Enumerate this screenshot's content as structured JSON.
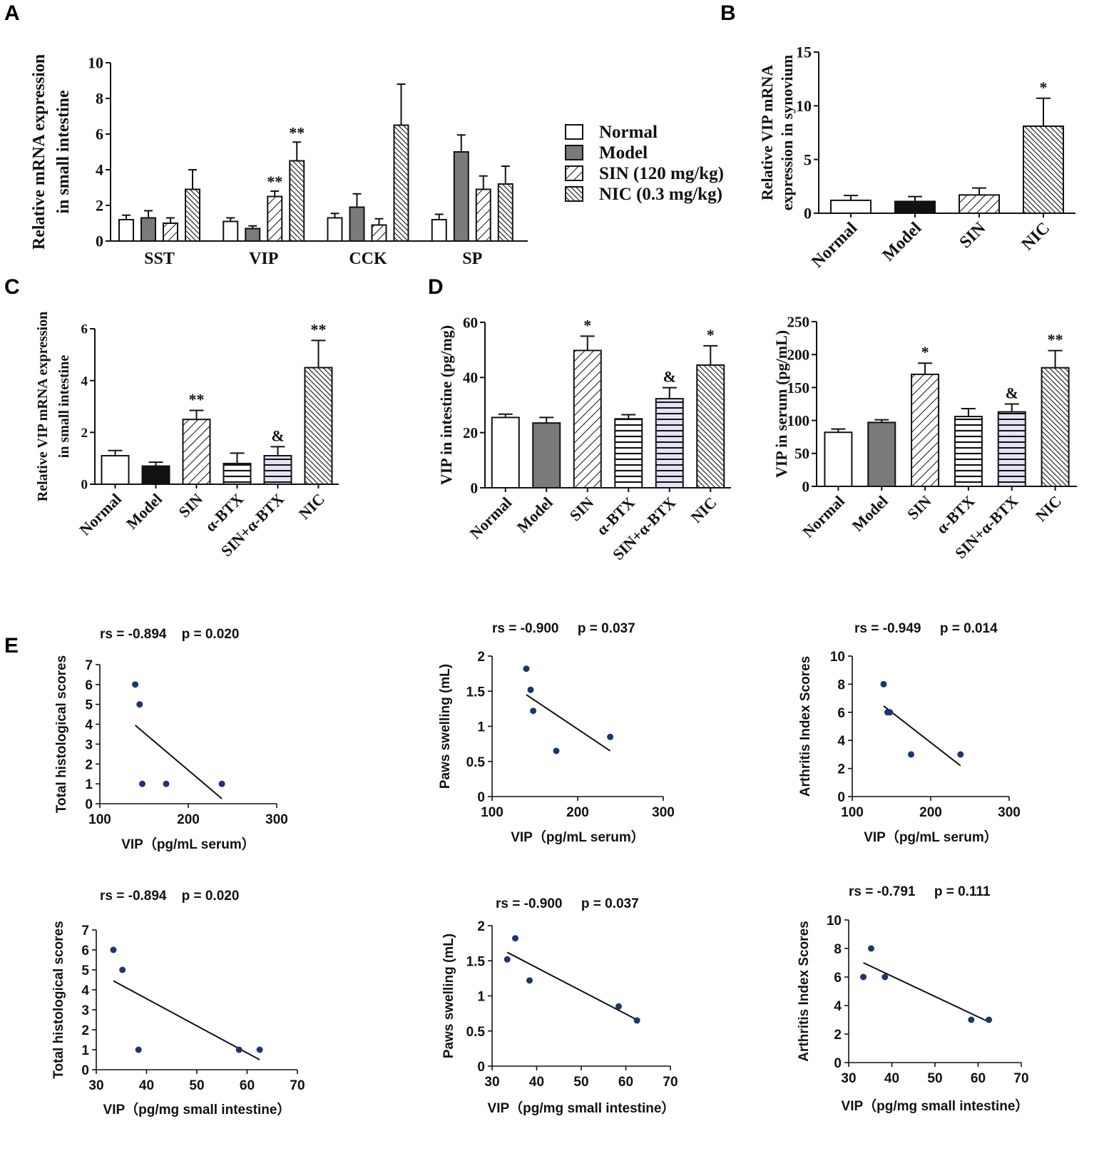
{
  "panel_labels": [
    "A",
    "B",
    "C",
    "D",
    "E"
  ],
  "colors": {
    "ink": "#111111",
    "model_gray": "#7a7a7a",
    "model_black": "#111111",
    "lavender": "#e3e3f5",
    "dot": "#1f3470"
  },
  "chart_data": [
    {
      "id": "A",
      "type": "bar",
      "style": "serif",
      "categories": [
        "SST",
        "VIP",
        "CCK",
        "SP"
      ],
      "series": [
        {
          "name": "Normal",
          "fill": "open",
          "values": [
            1.2,
            1.1,
            1.3,
            1.2
          ],
          "errors": [
            0.25,
            0.2,
            0.25,
            0.3
          ],
          "annotations": [
            "",
            "",
            "",
            ""
          ]
        },
        {
          "name": "Model",
          "fill": "gray",
          "values": [
            1.3,
            0.7,
            1.9,
            5.0
          ],
          "errors": [
            0.4,
            0.15,
            0.75,
            0.95
          ],
          "annotations": [
            "",
            "",
            "",
            ""
          ]
        },
        {
          "name": "SIN (120 mg/kg)",
          "fill": "hatch",
          "values": [
            1.0,
            2.5,
            0.9,
            2.9
          ],
          "errors": [
            0.3,
            0.3,
            0.35,
            0.75
          ],
          "annotations": [
            "",
            "**",
            "",
            ""
          ]
        },
        {
          "name": "NIC (0.3 mg/kg)",
          "fill": "hatch-dense",
          "values": [
            2.9,
            4.5,
            6.5,
            3.2
          ],
          "errors": [
            1.1,
            1.05,
            2.3,
            1.0
          ],
          "annotations": [
            "",
            "**",
            "",
            ""
          ]
        }
      ],
      "ylabel": [
        "Relative  mRNA expression",
        "in small intestine"
      ],
      "ylim": [
        0,
        10
      ],
      "yticks": [
        0,
        2,
        4,
        6,
        8,
        10
      ],
      "legend": [
        "Normal",
        "Model",
        "SIN (120 mg/kg)",
        "NIC (0.3 mg/kg)"
      ]
    },
    {
      "id": "B",
      "type": "bar",
      "style": "serif",
      "categories": [
        "Normal",
        "Model",
        "SIN",
        "NIC"
      ],
      "fills": [
        "open",
        "black",
        "hatch",
        "hatch-dense"
      ],
      "values": [
        1.2,
        1.1,
        1.7,
        8.1
      ],
      "errors": [
        0.45,
        0.45,
        0.65,
        2.6
      ],
      "annotations": [
        "",
        "",
        "",
        "*"
      ],
      "ylabel": [
        "Relative VIP mRNA",
        "expression in synovium"
      ],
      "ylim": [
        0,
        15
      ],
      "yticks": [
        0,
        5,
        10,
        15
      ]
    },
    {
      "id": "C",
      "type": "bar",
      "style": "serif",
      "categories": [
        "Normal",
        "Model",
        "SIN",
        "α-BTX",
        "SIN+α-BTX",
        "NIC"
      ],
      "fills": [
        "open",
        "black",
        "hatch",
        "hlines",
        "hlines-lav",
        "hatch-dense"
      ],
      "values": [
        1.1,
        0.7,
        2.5,
        0.8,
        1.1,
        4.5
      ],
      "errors": [
        0.2,
        0.15,
        0.35,
        0.4,
        0.35,
        1.05
      ],
      "annotations": [
        "",
        "",
        "**",
        "",
        "&",
        "**"
      ],
      "ylabel": [
        "Relative VIP mRNA expression",
        "in small intestine"
      ],
      "ylim": [
        0,
        6
      ],
      "yticks": [
        0,
        2,
        4,
        6
      ]
    },
    {
      "id": "D1",
      "type": "bar",
      "style": "serif",
      "categories": [
        "Normal",
        "Model",
        "SIN",
        "α-BTX",
        "SIN+α-BTX",
        "NIC"
      ],
      "fills": [
        "open",
        "gray",
        "hatch",
        "hlines",
        "hlines-lav",
        "hatch-dense"
      ],
      "values": [
        25.5,
        23.5,
        49.8,
        25,
        32.3,
        44.5
      ],
      "errors": [
        1.2,
        2,
        5.2,
        1.5,
        4,
        7
      ],
      "annotations": [
        "",
        "",
        "*",
        "",
        "&",
        "*"
      ],
      "ylabel": [
        "VIP in intestine (pg/mg)"
      ],
      "ylim": [
        0,
        60
      ],
      "yticks": [
        0,
        20,
        40,
        60
      ]
    },
    {
      "id": "D2",
      "type": "bar",
      "style": "serif",
      "categories": [
        "Normal",
        "Model",
        "SIN",
        "α-BTX",
        "SIN+α-BTX",
        "NIC"
      ],
      "fills": [
        "open",
        "gray",
        "hatch",
        "hlines",
        "hlines-lav",
        "hatch-dense"
      ],
      "values": [
        82,
        97,
        170,
        106,
        113,
        180
      ],
      "errors": [
        5,
        4,
        17,
        12,
        12,
        26
      ],
      "annotations": [
        "",
        "",
        "*",
        "",
        "&",
        "**"
      ],
      "ylabel": [
        "VIP in serum (pg/mL)"
      ],
      "ylim": [
        0,
        250
      ],
      "yticks": [
        0,
        50,
        100,
        150,
        200,
        250
      ]
    },
    {
      "id": "E1",
      "type": "scatter",
      "style": "sans",
      "stats": "rs = -0.894    p = 0.020",
      "x": [
        140,
        145,
        148,
        175,
        238
      ],
      "y": [
        6,
        5,
        1,
        1,
        1
      ],
      "fit": [
        [
          140,
          3.95
        ],
        [
          238,
          0.25
        ]
      ],
      "xlabel": "VIP（pg/mL serum）",
      "ylabel": "Total histological scores",
      "xlim": [
        100,
        300
      ],
      "xticks": [
        100,
        200,
        300
      ],
      "ylim": [
        0,
        7
      ],
      "yticks": [
        0,
        1,
        2,
        3,
        4,
        5,
        6,
        7
      ]
    },
    {
      "id": "E2",
      "type": "scatter",
      "style": "sans",
      "stats": "rs = -0.900     p = 0.037",
      "x": [
        140,
        145,
        148,
        175,
        238
      ],
      "y": [
        1.82,
        1.52,
        1.22,
        0.65,
        0.85
      ],
      "fit": [
        [
          140,
          1.45
        ],
        [
          238,
          0.65
        ]
      ],
      "xlabel": "VIP（pg/mL serum）",
      "ylabel": "Paws swelling  (mL)",
      "xlim": [
        100,
        300
      ],
      "xticks": [
        100,
        200,
        300
      ],
      "ylim": [
        0,
        2
      ],
      "yticks": [
        0,
        0.5,
        1,
        1.5,
        2
      ]
    },
    {
      "id": "E3",
      "type": "scatter",
      "style": "sans",
      "stats": "rs = -0.949     p = 0.014",
      "x": [
        140,
        145,
        148,
        175,
        238
      ],
      "y": [
        8,
        6,
        6,
        3,
        3
      ],
      "fit": [
        [
          140,
          6.45
        ],
        [
          238,
          2.2
        ]
      ],
      "xlabel": "VIP（pg/mL serum）",
      "ylabel": "Arthritis Index Scores",
      "xlim": [
        100,
        300
      ],
      "xticks": [
        100,
        200,
        300
      ],
      "ylim": [
        0,
        10
      ],
      "yticks": [
        0,
        2,
        4,
        6,
        8,
        10
      ]
    },
    {
      "id": "E4",
      "type": "scatter",
      "style": "sans",
      "stats": "rs = -0.894    p = 0.020",
      "x": [
        33.4,
        35.2,
        38.4,
        58.4,
        62.5
      ],
      "y": [
        6,
        5,
        1,
        1,
        1
      ],
      "fit": [
        [
          33.4,
          4.45
        ],
        [
          62.5,
          0.5
        ]
      ],
      "xlabel": "VIP（pg/mg  small intestine）",
      "ylabel": "Total histological scores",
      "xlim": [
        30,
        70
      ],
      "xticks": [
        30,
        40,
        50,
        60,
        70
      ],
      "ylim": [
        0,
        7
      ],
      "yticks": [
        0,
        1,
        2,
        3,
        4,
        5,
        6,
        7
      ]
    },
    {
      "id": "E5",
      "type": "scatter",
      "style": "sans",
      "stats": "rs = -0.900     p = 0.037",
      "x": [
        33.4,
        35.2,
        38.4,
        58.4,
        62.5
      ],
      "y": [
        1.52,
        1.82,
        1.22,
        0.85,
        0.65
      ],
      "fit": [
        [
          33.4,
          1.62
        ],
        [
          62.5,
          0.66
        ]
      ],
      "xlabel": "VIP（pg/mg small intestine）",
      "ylabel": "Paws swelling  (mL)",
      "xlim": [
        30,
        70
      ],
      "xticks": [
        30,
        40,
        50,
        60,
        70
      ],
      "ylim": [
        0,
        2
      ],
      "yticks": [
        0,
        0.5,
        1,
        1.5,
        2
      ]
    },
    {
      "id": "E6",
      "type": "scatter",
      "style": "sans",
      "stats": "rs = -0.791     p = 0.111",
      "x": [
        33.4,
        35.2,
        38.4,
        58.4,
        62.5
      ],
      "y": [
        6,
        8,
        6,
        3,
        3
      ],
      "fit": [
        [
          33.4,
          7.0
        ],
        [
          62.5,
          2.85
        ]
      ],
      "xlabel": "VIP（pg/mg small intestine）",
      "ylabel": "Arthritis Index Scores",
      "xlim": [
        30,
        70
      ],
      "xticks": [
        30,
        40,
        50,
        60,
        70
      ],
      "ylim": [
        0,
        10
      ],
      "yticks": [
        0,
        2,
        4,
        6,
        8,
        10
      ]
    }
  ]
}
